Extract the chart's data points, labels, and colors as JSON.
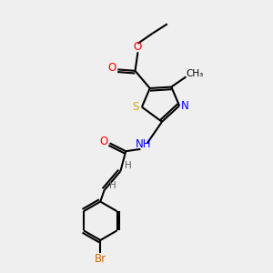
{
  "background_color": "#efefef",
  "atom_colors": {
    "C": "#000000",
    "H": "#606060",
    "N": "#0000ff",
    "O": "#ff0000",
    "S": "#ccaa00",
    "Br": "#cc6600"
  },
  "figsize": [
    3.0,
    3.0
  ],
  "dpi": 100,
  "xlim": [
    0,
    10
  ],
  "ylim": [
    0,
    10
  ]
}
